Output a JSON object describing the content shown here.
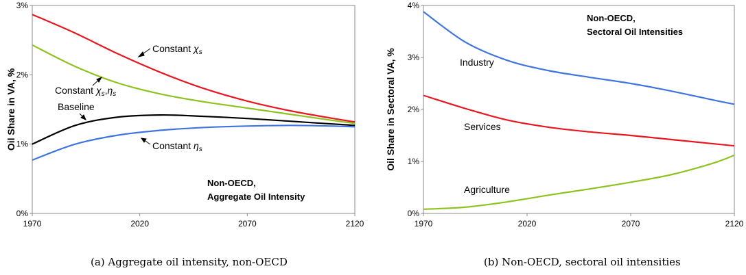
{
  "chart_data": [
    {
      "type": "line",
      "x_range": [
        1970,
        2120
      ],
      "ylim": [
        0,
        3
      ],
      "y_unit": "%",
      "grid": false,
      "xticks": [
        "1970",
        "2020",
        "2070",
        "2120"
      ],
      "yticks": [
        "0%",
        "1%",
        "2%",
        "3%"
      ],
      "ylabel": "Oil Share in VA, %",
      "title": "Non-OECD,\nAggregate Oil Intensity",
      "title_lines": [
        "Non-OECD,",
        "Aggregate Oil Intensity"
      ],
      "caption": "(a) Aggregate oil intensity, non-OECD",
      "series": [
        {
          "name": "Constant χs",
          "color": "#e8171f",
          "x": [
            1970,
            1990,
            2010,
            2030,
            2050,
            2070,
            2090,
            2110,
            2120
          ],
          "values": [
            2.87,
            2.6,
            2.3,
            2.03,
            1.8,
            1.62,
            1.48,
            1.37,
            1.32
          ]
        },
        {
          "name": "Constant χs,ηs",
          "color": "#8dc21f",
          "x": [
            1970,
            1990,
            2010,
            2030,
            2050,
            2070,
            2090,
            2110,
            2120
          ],
          "values": [
            2.43,
            2.12,
            1.88,
            1.72,
            1.61,
            1.52,
            1.43,
            1.34,
            1.3
          ]
        },
        {
          "name": "Baseline",
          "color": "#000000",
          "x": [
            1970,
            1990,
            2010,
            2030,
            2050,
            2070,
            2090,
            2110,
            2120
          ],
          "values": [
            1.0,
            1.27,
            1.39,
            1.42,
            1.4,
            1.37,
            1.33,
            1.29,
            1.27
          ]
        },
        {
          "name": "Constant ηs",
          "color": "#3f74e0",
          "x": [
            1970,
            1990,
            2010,
            2030,
            2050,
            2070,
            2090,
            2110,
            2120
          ],
          "values": [
            0.77,
            1.0,
            1.13,
            1.2,
            1.24,
            1.26,
            1.27,
            1.26,
            1.25
          ]
        }
      ]
    },
    {
      "type": "line",
      "x_range": [
        1970,
        2120
      ],
      "ylim": [
        0,
        4
      ],
      "y_unit": "%",
      "grid": false,
      "xticks": [
        "1970",
        "2020",
        "2070",
        "2120"
      ],
      "yticks": [
        "0%",
        "1%",
        "2%",
        "3%",
        "4%"
      ],
      "ylabel": "Oil Share in Sectoral VA, %",
      "title": "Non-OECD,\nSectoral Oil Intensities",
      "title_lines": [
        "Non-OECD,",
        "Sectoral Oil Intensities"
      ],
      "caption": "(b) Non-OECD, sectoral oil intensities",
      "series": [
        {
          "name": "Industry",
          "color": "#3f74e0",
          "x": [
            1970,
            1990,
            2010,
            2030,
            2050,
            2070,
            2090,
            2110,
            2120
          ],
          "values": [
            3.88,
            3.3,
            2.95,
            2.75,
            2.62,
            2.5,
            2.35,
            2.18,
            2.1
          ]
        },
        {
          "name": "Services",
          "color": "#e8171f",
          "x": [
            1970,
            1990,
            2010,
            2030,
            2050,
            2070,
            2090,
            2110,
            2120
          ],
          "values": [
            2.27,
            2.02,
            1.8,
            1.66,
            1.57,
            1.5,
            1.42,
            1.34,
            1.3
          ]
        },
        {
          "name": "Agriculture",
          "color": "#8dc21f",
          "x": [
            1970,
            1990,
            2010,
            2030,
            2050,
            2070,
            2090,
            2110,
            2120
          ],
          "values": [
            0.08,
            0.12,
            0.22,
            0.35,
            0.47,
            0.6,
            0.75,
            0.97,
            1.12
          ]
        }
      ]
    }
  ]
}
